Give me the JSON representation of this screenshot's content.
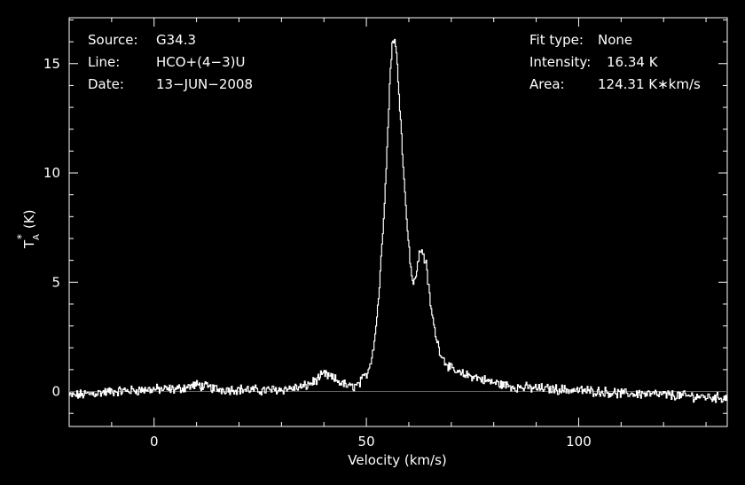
{
  "info": {
    "source_label": "Source:",
    "source_value": "G34.3",
    "line_label": "Line:",
    "line_value": "HCO+(4−3)U",
    "date_label": "Date:",
    "date_value": "13−JUN−2008",
    "fit_label": "Fit type:",
    "fit_value": "None",
    "intensity_label": "Intensity:",
    "intensity_value": "16.34 K",
    "area_label": "Area:",
    "area_value": "124.31 K∗km/s"
  },
  "colors": {
    "background": "#000000",
    "spectrum": "#ffffff",
    "baseline": "#ff2020",
    "axes": "#ffffff"
  },
  "chart_data": {
    "type": "line",
    "title": "",
    "xlabel": "Velocity (km/s)",
    "ylabel_main": "T",
    "ylabel_sup": "*",
    "ylabel_sub": "A",
    "ylabel_unit": "(K)",
    "xlim": [
      -20,
      135
    ],
    "ylim": [
      -1.6,
      17.1
    ],
    "x_ticks": [
      0,
      50,
      100
    ],
    "y_ticks": [
      0,
      5,
      10,
      15
    ],
    "grid": false,
    "baseline_y": 0,
    "series": [
      {
        "style": "step",
        "x": [
          -20,
          -15,
          -10,
          -5,
          0,
          5,
          10,
          15,
          20,
          25,
          30,
          35,
          38,
          40,
          42,
          44,
          46,
          48,
          50,
          51,
          52,
          53,
          54,
          55,
          55.5,
          56,
          56.5,
          57,
          58,
          59,
          60,
          60.5,
          61,
          62,
          62.5,
          63,
          64,
          65,
          66,
          67,
          68,
          70,
          72,
          75,
          78,
          80,
          85,
          90,
          95,
          100,
          105,
          110,
          115,
          120,
          125,
          130,
          135
        ],
        "y": [
          -0.2,
          -0.1,
          0.0,
          0.05,
          0.1,
          0.1,
          0.3,
          0.1,
          0.1,
          0.05,
          0.1,
          0.2,
          0.5,
          0.8,
          0.6,
          0.4,
          0.2,
          0.3,
          0.8,
          1.4,
          2.6,
          4.8,
          8.0,
          12.0,
          14.5,
          15.9,
          16.2,
          15.4,
          12.5,
          9.0,
          6.5,
          5.5,
          4.8,
          5.8,
          6.4,
          6.5,
          5.8,
          4.0,
          2.8,
          2.0,
          1.5,
          1.0,
          0.8,
          0.7,
          0.5,
          0.4,
          0.2,
          0.15,
          0.1,
          0.05,
          0.0,
          -0.1,
          -0.1,
          -0.15,
          -0.2,
          -0.25,
          -0.3
        ]
      }
    ]
  }
}
